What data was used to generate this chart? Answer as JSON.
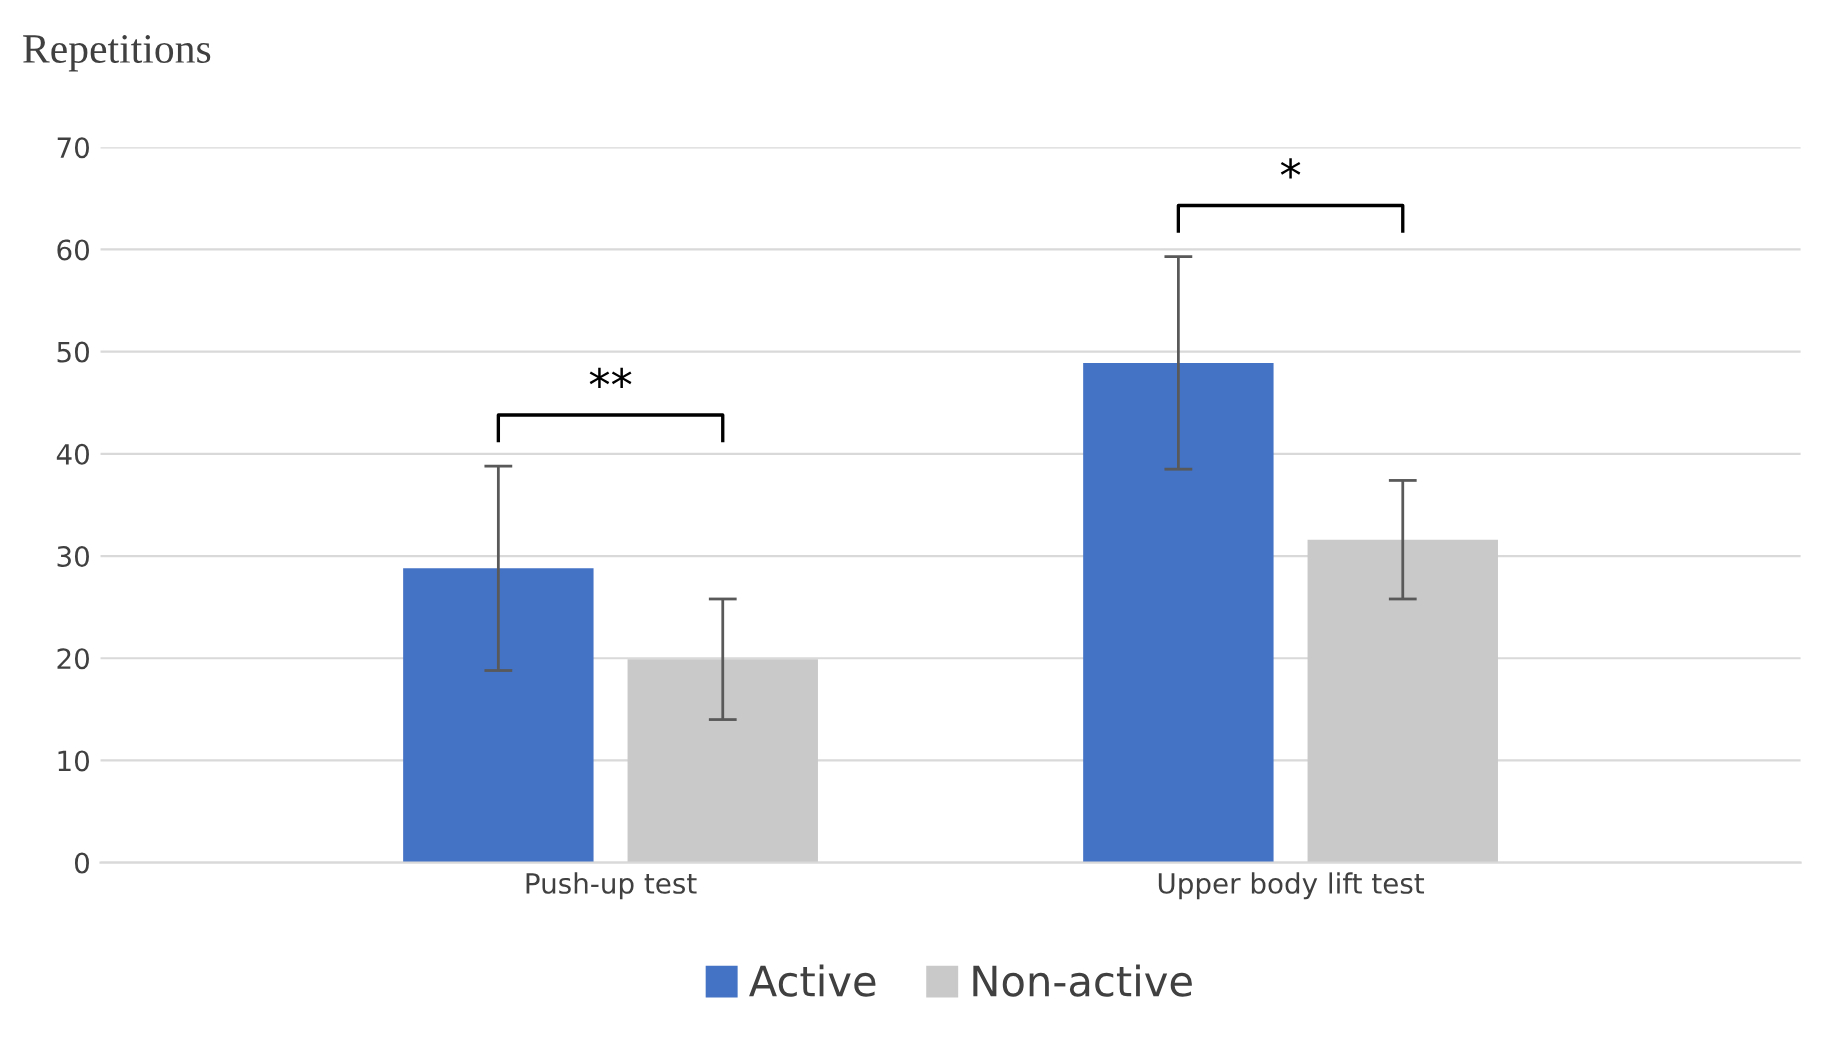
{
  "chart_data": {
    "type": "bar",
    "ylabel": "Repetitions",
    "categories": [
      "Push-up test",
      "Upper body lift test"
    ],
    "series": [
      {
        "name": "Active",
        "color": "#4472c4",
        "values": [
          28.8,
          48.9
        ],
        "errors": [
          10,
          10.4
        ]
      },
      {
        "name": "Non-active",
        "color": "#c9c9c9",
        "values": [
          19.9,
          31.6
        ],
        "errors": [
          5.9,
          5.8
        ]
      }
    ],
    "ylim": [
      0,
      70
    ],
    "yticks": [
      0,
      10,
      20,
      30,
      40,
      50,
      60,
      70
    ],
    "grid": "y",
    "legend": "bottom",
    "annotations": [
      "**",
      "*"
    ]
  }
}
